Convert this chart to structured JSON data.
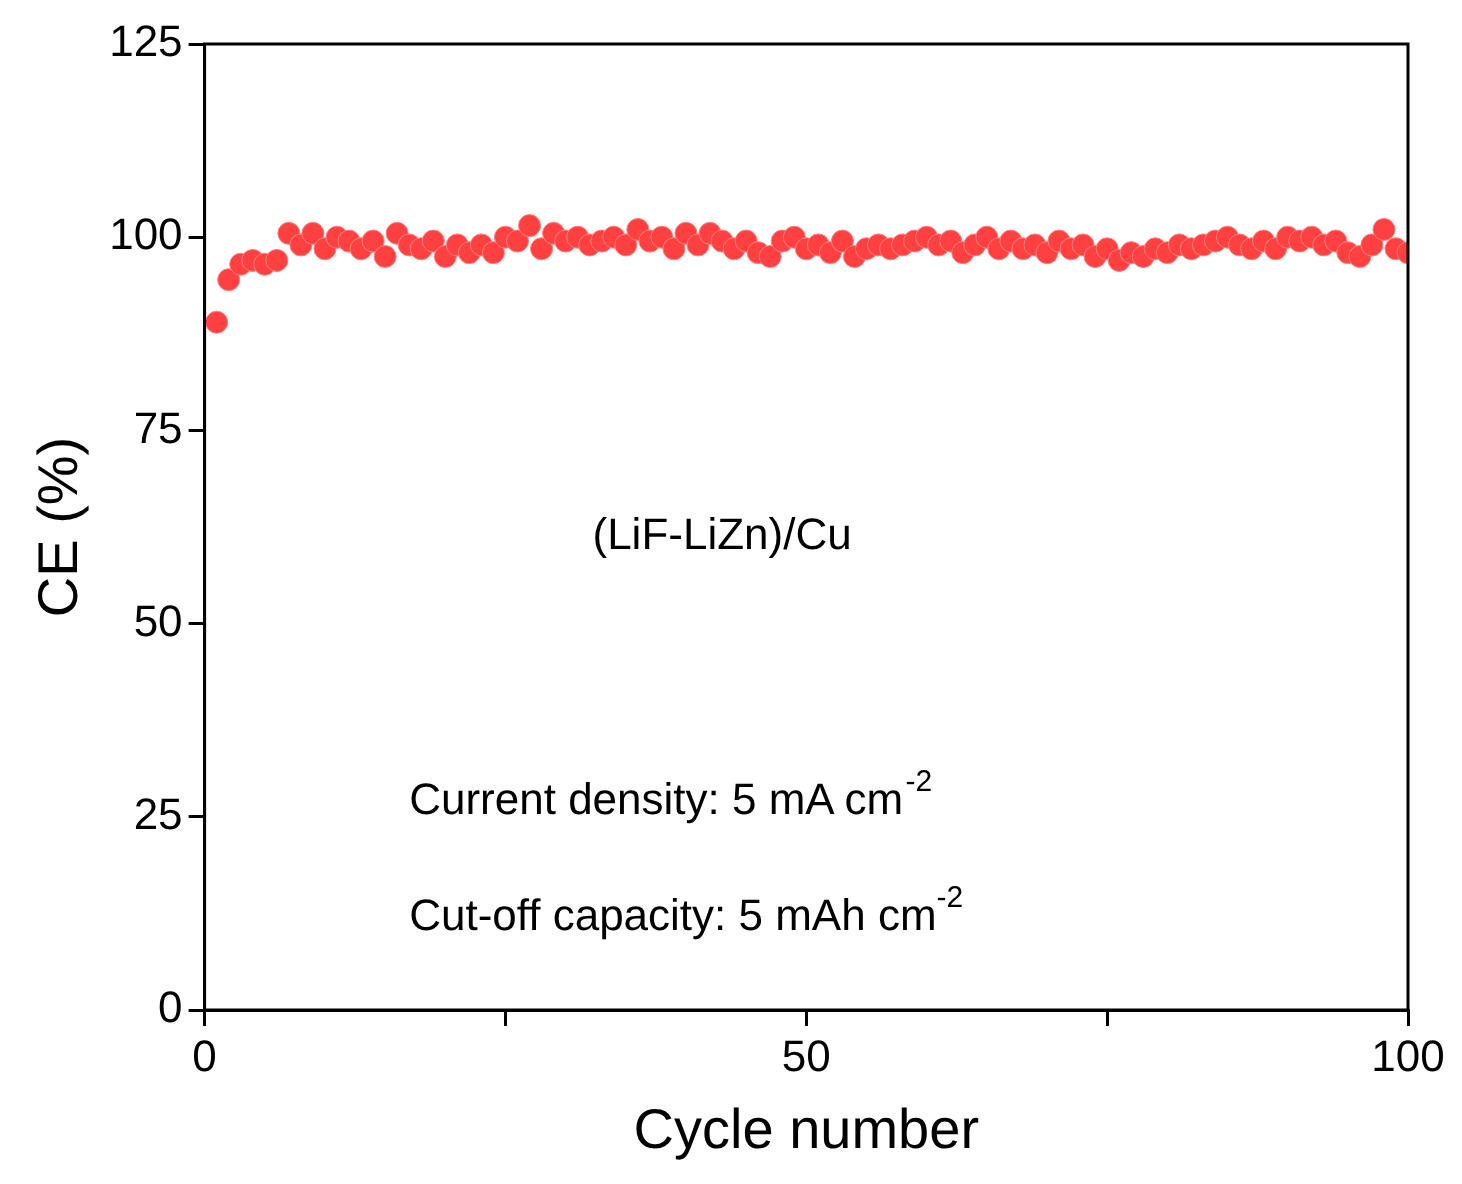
{
  "chart_data": {
    "type": "scatter",
    "xlabel": "Cycle number",
    "ylabel": "CE (%)",
    "x": [
      1,
      2,
      3,
      4,
      5,
      6,
      7,
      8,
      9,
      10,
      11,
      12,
      13,
      14,
      15,
      16,
      17,
      18,
      19,
      20,
      21,
      22,
      23,
      24,
      25,
      26,
      27,
      28,
      29,
      30,
      31,
      32,
      33,
      34,
      35,
      36,
      37,
      38,
      39,
      40,
      41,
      42,
      43,
      44,
      45,
      46,
      47,
      48,
      49,
      50,
      51,
      52,
      53,
      54,
      55,
      56,
      57,
      58,
      59,
      60,
      61,
      62,
      63,
      64,
      65,
      66,
      67,
      68,
      69,
      70,
      71,
      72,
      73,
      74,
      75,
      76,
      77,
      78,
      79,
      80,
      81,
      82,
      83,
      84,
      85,
      86,
      87,
      88,
      89,
      90,
      91,
      92,
      93,
      94,
      95,
      96,
      97,
      98,
      99,
      100
    ],
    "series": [
      {
        "color": "#ff4040",
        "values": [
          89,
          94.5,
          96.5,
          97,
          96.5,
          97,
          100.5,
          99,
          100.5,
          98.5,
          100,
          99.5,
          98.5,
          99.5,
          97.5,
          100.5,
          99,
          98.5,
          99.5,
          97.5,
          99,
          98,
          99,
          98,
          100,
          99.5,
          101.5,
          98.5,
          100.5,
          99.5,
          100,
          99,
          99.5,
          100,
          99,
          101,
          99.5,
          100,
          98.5,
          100.5,
          99,
          100.5,
          99.5,
          98.5,
          99.5,
          98,
          97.5,
          99.5,
          100,
          98.5,
          99,
          98,
          99.5,
          97.5,
          98.5,
          99,
          98.5,
          99,
          99.5,
          100,
          99,
          99.5,
          98,
          99,
          100,
          98.5,
          99.5,
          98.5,
          99,
          98,
          99.5,
          98.5,
          99,
          97.5,
          98.5,
          97,
          98,
          97.5,
          98.5,
          98,
          99,
          98.5,
          99,
          99.5,
          100,
          99,
          98.5,
          99.5,
          98.5,
          100,
          99.5,
          100,
          99,
          99.5,
          98,
          97.5,
          99,
          101,
          98.5,
          98
        ]
      }
    ],
    "xlim": [
      0,
      100
    ],
    "xticks": [
      0,
      {
        "value": 25,
        "label": null
      },
      50,
      {
        "value": 75,
        "label": null
      },
      100
    ],
    "ylim": [
      0,
      125
    ],
    "yticks": [
      0,
      25,
      50,
      75,
      100,
      125
    ],
    "grid": false,
    "legend": false,
    "marker": "circle",
    "annotations": [
      "(LiF-LiZn)/Cu",
      "Current density: 5 mA cm$^{-2}$",
      "Cut-off capacity: 5 mAh cm$^{-2}$"
    ]
  }
}
